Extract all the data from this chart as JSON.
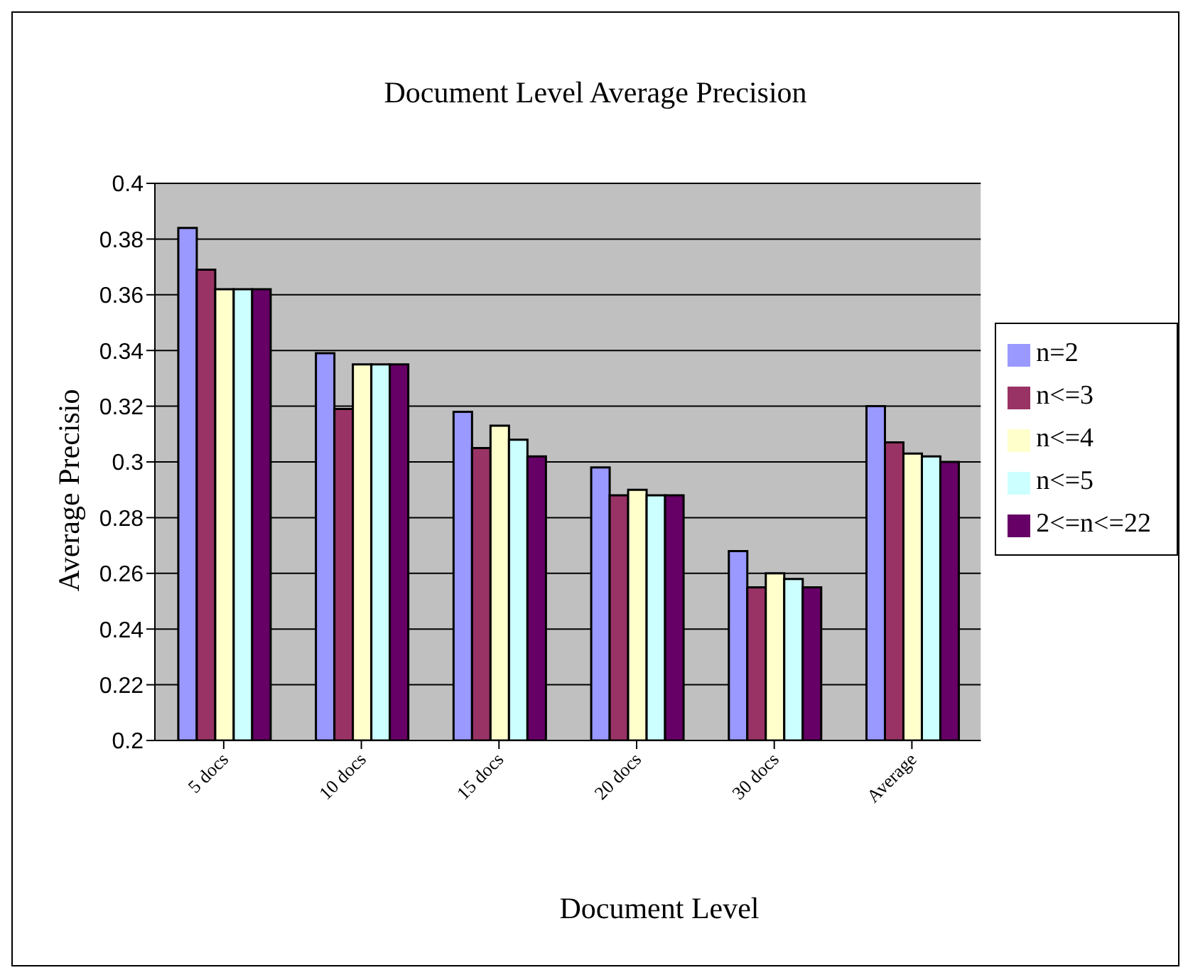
{
  "chart_data": {
    "type": "bar",
    "title": "Document Level Average Precision",
    "xlabel": "Document Level",
    "ylabel": "Average Precisio",
    "categories": [
      "5 docs",
      "10 docs",
      "15 docs",
      "20 docs",
      "30 docs",
      "Average"
    ],
    "series": [
      {
        "name": "n=2",
        "color": "#9999ff",
        "values": [
          0.384,
          0.339,
          0.318,
          0.298,
          0.268,
          0.32
        ]
      },
      {
        "name": "n<=3",
        "color": "#993366",
        "values": [
          0.369,
          0.319,
          0.305,
          0.288,
          0.255,
          0.307
        ]
      },
      {
        "name": "n<=4",
        "color": "#ffffcc",
        "values": [
          0.362,
          0.335,
          0.313,
          0.29,
          0.26,
          0.303
        ]
      },
      {
        "name": "n<=5",
        "color": "#ccffff",
        "values": [
          0.362,
          0.335,
          0.308,
          0.288,
          0.258,
          0.302
        ]
      },
      {
        "name": "2<=n<=22",
        "color": "#660066",
        "values": [
          0.362,
          0.335,
          0.302,
          0.288,
          0.255,
          0.3
        ]
      }
    ],
    "ylim": [
      0.2,
      0.4
    ],
    "yticks": [
      0.2,
      0.22,
      0.24,
      0.26,
      0.28,
      0.3,
      0.32,
      0.34,
      0.36,
      0.38,
      0.4
    ],
    "grid": "y",
    "legend": "right"
  }
}
